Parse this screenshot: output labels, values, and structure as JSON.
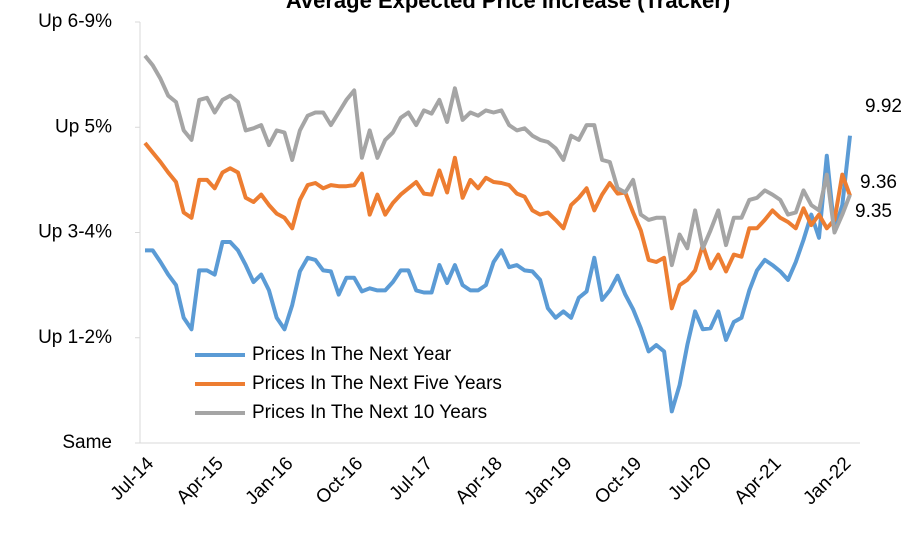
{
  "chart_data": {
    "type": "line",
    "title": "Average Expected Price Increase (Tracker)",
    "categories": [
      "Jul-14",
      null,
      null,
      null,
      null,
      null,
      null,
      null,
      null,
      "Apr-15",
      null,
      null,
      null,
      null,
      null,
      null,
      null,
      null,
      "Jan-16",
      null,
      null,
      null,
      null,
      null,
      null,
      null,
      null,
      "Oct-16",
      null,
      null,
      null,
      null,
      null,
      null,
      null,
      null,
      "Jul-17",
      null,
      null,
      null,
      null,
      null,
      null,
      null,
      null,
      "Apr-18",
      null,
      null,
      null,
      null,
      null,
      null,
      null,
      null,
      "Jan-19",
      null,
      null,
      null,
      null,
      null,
      null,
      null,
      null,
      "Oct-19",
      null,
      null,
      null,
      null,
      null,
      null,
      null,
      null,
      "Jul-20",
      null,
      null,
      null,
      null,
      null,
      null,
      null,
      null,
      "Apr-21",
      null,
      null,
      null,
      null,
      null,
      null,
      null,
      null,
      "Jan-22",
      null
    ],
    "series": [
      {
        "name": "Prices In The Next Year",
        "color": "#5b9bd5",
        "values": [
          8.83,
          8.83,
          8.72,
          8.6,
          8.5,
          8.19,
          8.08,
          8.64,
          8.64,
          8.6,
          8.91,
          8.91,
          8.83,
          8.69,
          8.53,
          8.6,
          8.45,
          8.19,
          8.08,
          8.31,
          8.63,
          8.76,
          8.74,
          8.64,
          8.63,
          8.41,
          8.57,
          8.57,
          8.44,
          8.47,
          8.45,
          8.45,
          8.53,
          8.64,
          8.64,
          8.45,
          8.43,
          8.43,
          8.69,
          8.52,
          8.69,
          8.5,
          8.45,
          8.45,
          8.5,
          8.72,
          8.83,
          8.67,
          8.69,
          8.64,
          8.63,
          8.55,
          8.28,
          8.19,
          8.25,
          8.19,
          8.38,
          8.44,
          8.76,
          8.36,
          8.45,
          8.59,
          8.41,
          8.27,
          8.09,
          7.87,
          7.93,
          7.87,
          7.3,
          7.55,
          7.93,
          8.25,
          8.08,
          8.09,
          8.25,
          7.98,
          8.15,
          8.19,
          8.45,
          8.64,
          8.74,
          8.69,
          8.63,
          8.55,
          8.72,
          8.93,
          9.17,
          8.95,
          9.73,
          9.02,
          9.26,
          9.92
        ]
      },
      {
        "name": "Prices In The Next Five Years",
        "color": "#ed7d31",
        "values": [
          9.85,
          9.76,
          9.67,
          9.57,
          9.48,
          9.19,
          9.14,
          9.5,
          9.5,
          9.42,
          9.57,
          9.61,
          9.57,
          9.33,
          9.29,
          9.36,
          9.26,
          9.18,
          9.14,
          9.04,
          9.31,
          9.45,
          9.47,
          9.42,
          9.45,
          9.44,
          9.44,
          9.45,
          9.56,
          9.17,
          9.36,
          9.17,
          9.28,
          9.36,
          9.42,
          9.48,
          9.37,
          9.36,
          9.59,
          9.38,
          9.71,
          9.33,
          9.5,
          9.42,
          9.52,
          9.48,
          9.47,
          9.45,
          9.37,
          9.34,
          9.21,
          9.17,
          9.19,
          9.12,
          9.04,
          9.26,
          9.33,
          9.42,
          9.21,
          9.36,
          9.47,
          9.37,
          9.38,
          9.19,
          9.02,
          8.74,
          8.72,
          8.76,
          8.28,
          8.5,
          8.55,
          8.64,
          8.88,
          8.66,
          8.79,
          8.63,
          8.79,
          8.77,
          9.04,
          9.04,
          9.12,
          9.21,
          9.14,
          9.1,
          9.04,
          9.23,
          9.07,
          9.17,
          9.04,
          9.12,
          9.55,
          9.35
        ]
      },
      {
        "name": "Prices In The Next 10 Years",
        "color": "#a5a5a5",
        "values": [
          10.68,
          10.59,
          10.46,
          10.3,
          10.24,
          9.97,
          9.88,
          10.26,
          10.28,
          10.14,
          10.26,
          10.3,
          10.24,
          9.97,
          9.99,
          10.02,
          9.83,
          9.97,
          9.95,
          9.69,
          9.97,
          10.11,
          10.14,
          10.14,
          10.02,
          10.14,
          10.26,
          10.35,
          9.71,
          9.97,
          9.71,
          9.88,
          9.95,
          10.09,
          10.14,
          10.02,
          10.16,
          10.13,
          10.26,
          10.05,
          10.37,
          10.07,
          10.14,
          10.11,
          10.16,
          10.14,
          10.16,
          10.02,
          9.97,
          9.99,
          9.92,
          9.88,
          9.86,
          9.8,
          9.69,
          9.92,
          9.88,
          10.02,
          10.02,
          9.69,
          9.67,
          9.42,
          9.38,
          9.5,
          9.17,
          9.12,
          9.14,
          9.14,
          8.69,
          8.98,
          8.85,
          9.21,
          8.85,
          9.02,
          9.21,
          8.88,
          9.14,
          9.14,
          9.31,
          9.33,
          9.4,
          9.36,
          9.31,
          9.17,
          9.19,
          9.4,
          9.26,
          9.21,
          9.55,
          9.0,
          9.17,
          9.36
        ]
      }
    ],
    "ylim": [
      7,
      11
    ],
    "yticks": [
      {
        "value": 7,
        "label": "Same"
      },
      {
        "value": 8,
        "label": "Up 1-2%"
      },
      {
        "value": 9,
        "label": "Up 3-4%"
      },
      {
        "value": 10,
        "label": "Up 5%"
      },
      {
        "value": 11,
        "label": "Up 6-9%"
      }
    ],
    "grid": false,
    "legend": "lower-left"
  }
}
